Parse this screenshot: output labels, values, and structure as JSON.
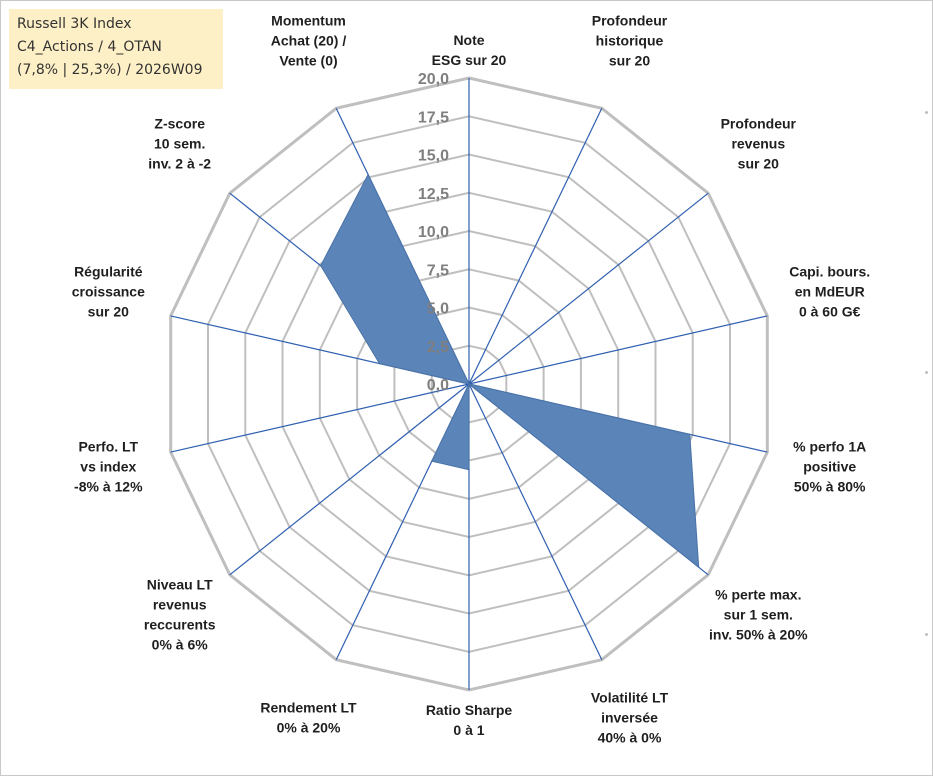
{
  "info": {
    "line1": "Russell 3K Index",
    "line2": "C4_Actions / 4_OTAN",
    "line3": "(7,8% | 25,3%) / 2026W09"
  },
  "colors": {
    "grid": "#bfbfbf",
    "spoke": "#2f5fb0",
    "fill": "#5b84b8",
    "info_bg": "#fdf0c6"
  },
  "chart_data": {
    "type": "radar",
    "r_min": 0,
    "r_max": 20,
    "r_step": 2.5,
    "tick_labels": [
      "0,0",
      "2,5",
      "5,0",
      "7,5",
      "10,0",
      "12,5",
      "15,0",
      "17,5",
      "20,0"
    ],
    "axes": [
      {
        "lines": [
          "Note",
          "ESG sur 20"
        ]
      },
      {
        "lines": [
          "Profondeur",
          "historique",
          "sur 20"
        ]
      },
      {
        "lines": [
          "Profondeur",
          "revenus",
          "sur 20"
        ]
      },
      {
        "lines": [
          "Capi. bours.",
          "en MdEUR",
          "0 à 60 G€"
        ]
      },
      {
        "lines": [
          "% perfo 1A",
          "positive",
          "50% à 80%"
        ]
      },
      {
        "lines": [
          "% perte max.",
          "sur 1 sem.",
          "inv. 50% à 20%"
        ]
      },
      {
        "lines": [
          "Volatilité LT",
          "inversée",
          "40% à 0%"
        ]
      },
      {
        "lines": [
          "Ratio Sharpe",
          "0 à 1"
        ]
      },
      {
        "lines": [
          "Rendement LT",
          "0% à 20%"
        ]
      },
      {
        "lines": [
          "Niveau LT",
          "revenus",
          "reccurents",
          "0% à 6%"
        ]
      },
      {
        "lines": [
          "Perfo. LT",
          "vs index",
          "-8% à 12%"
        ]
      },
      {
        "lines": [
          "Régularité",
          "croissance",
          "sur 20"
        ]
      },
      {
        "lines": [
          "Z-score",
          "10 sem.",
          "inv. 2 à -2"
        ]
      },
      {
        "lines": [
          "Momentum",
          "Achat (20) /",
          "Vente (0)"
        ]
      }
    ],
    "series": [
      {
        "values": [
          0,
          0,
          0,
          0,
          14.8,
          19.2,
          0,
          5.6,
          5.6,
          0,
          0,
          6.0,
          12.4,
          15.2
        ]
      }
    ]
  }
}
